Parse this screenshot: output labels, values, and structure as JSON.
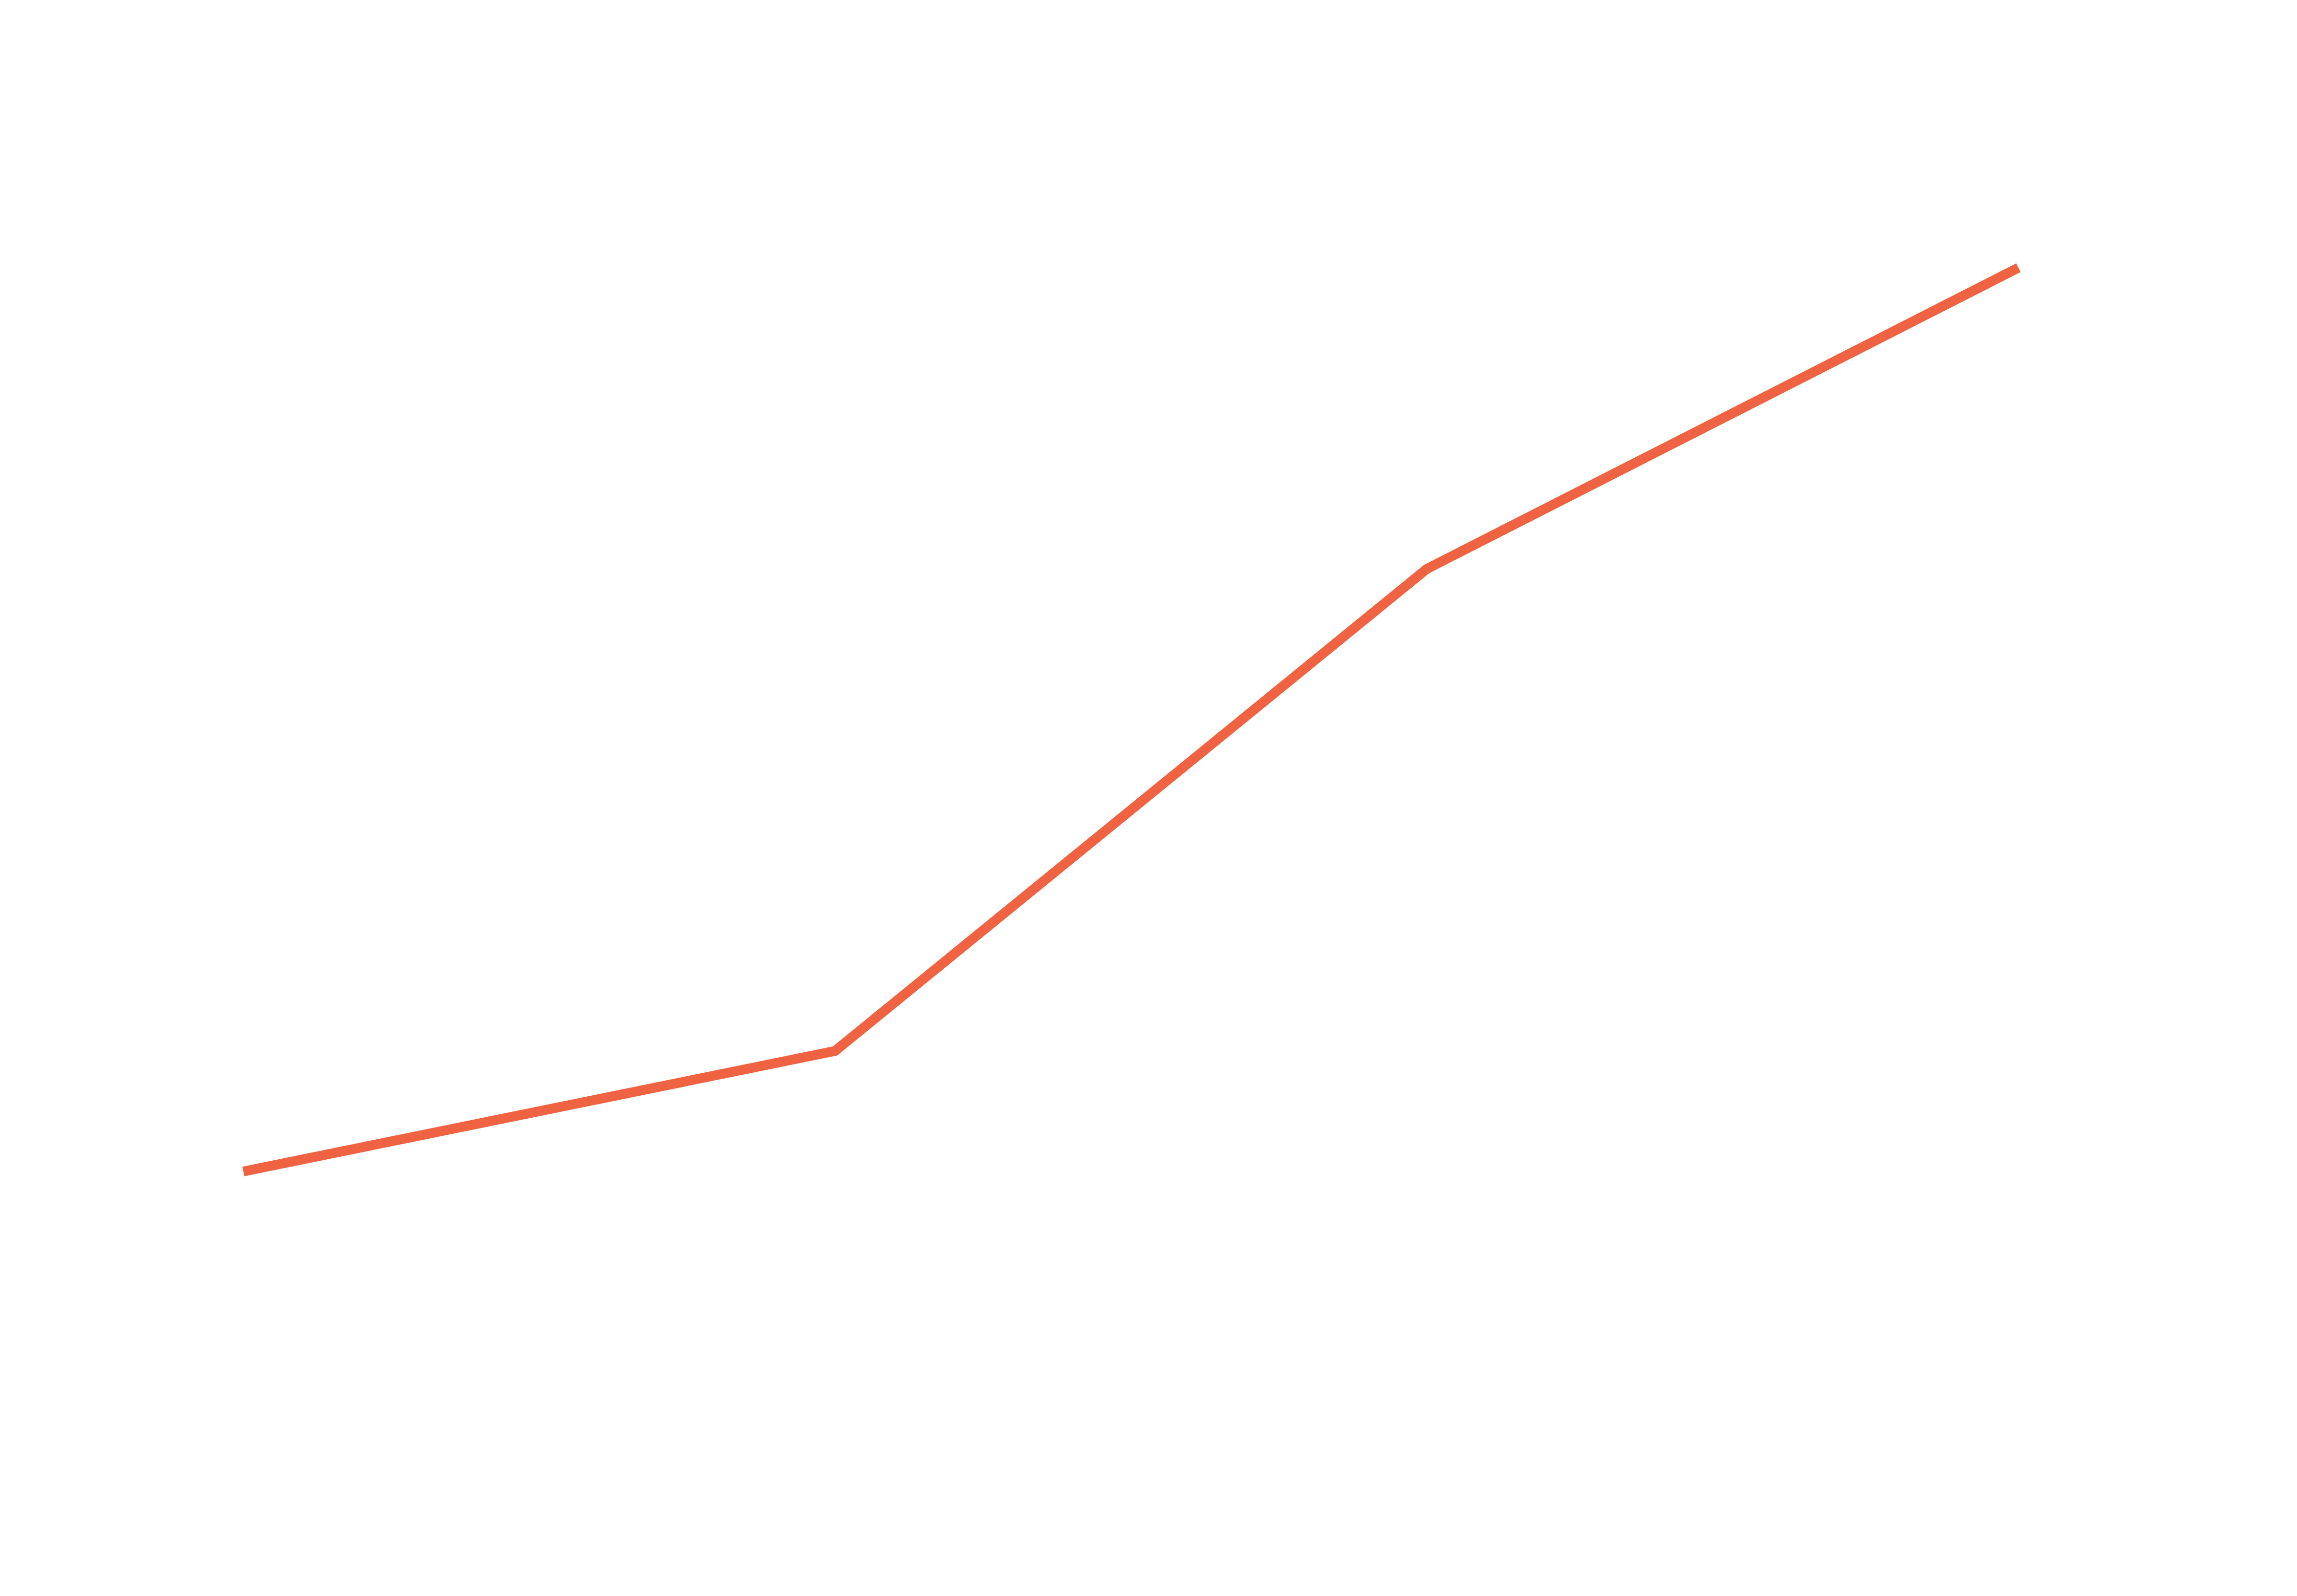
{
  "chart_data": {
    "type": "line",
    "categories": [
      null,
      null,
      null,
      null
    ],
    "values": [
      20,
      28,
      60,
      80
    ],
    "color": "#ef6342"
  }
}
